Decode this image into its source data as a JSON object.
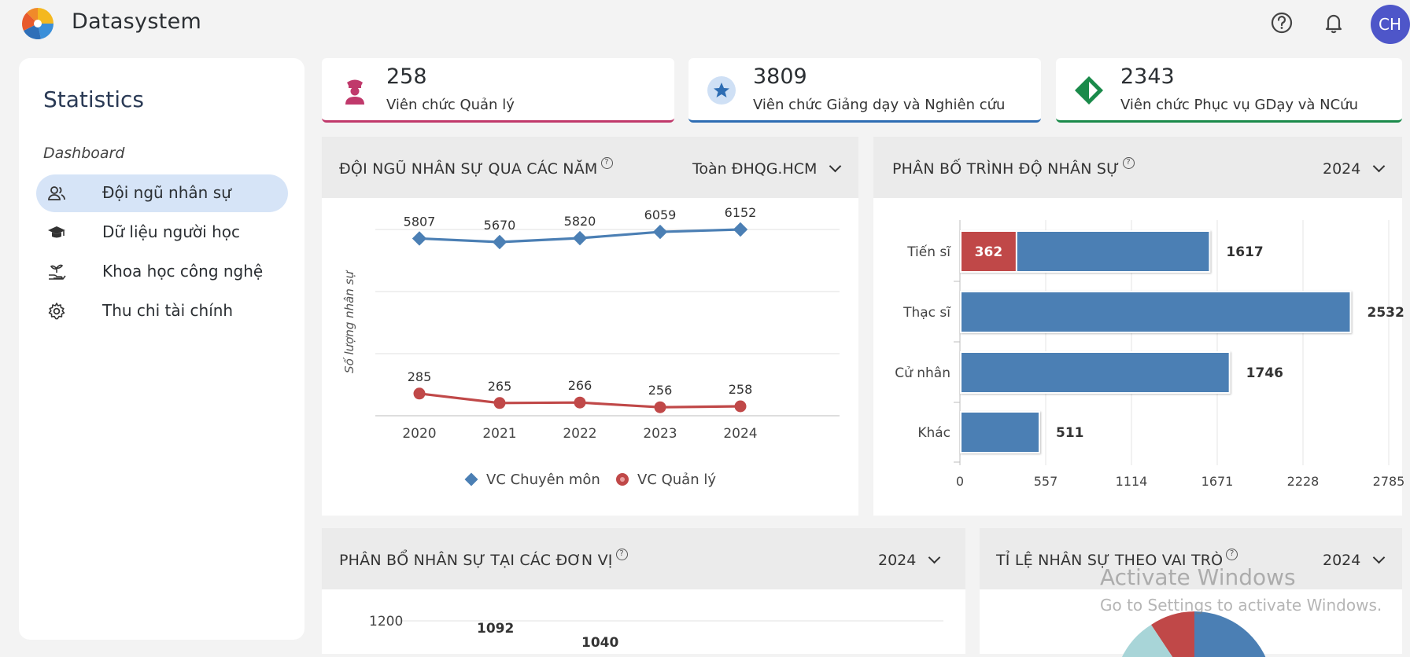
{
  "app": {
    "title": "Datasystem",
    "avatar_initials": "CH"
  },
  "header": {
    "help_icon": "help-circle-icon",
    "bell_icon": "bell-icon"
  },
  "sidebar": {
    "title": "Statistics",
    "section": "Dashboard",
    "items": [
      {
        "label": "Đội ngũ nhân sự",
        "icon": "users-icon",
        "active": true
      },
      {
        "label": "Dữ liệu người học",
        "icon": "graduation-cap-icon",
        "active": false
      },
      {
        "label": "Khoa học công nghệ",
        "icon": "plant-hand-icon",
        "active": false
      },
      {
        "label": "Thu chi tài chính",
        "icon": "gear-icon",
        "active": false
      }
    ]
  },
  "stats": [
    {
      "value": "258",
      "label": "Viên chức Quản lý",
      "color": "#c0396b",
      "icon": "officer-icon"
    },
    {
      "value": "3809",
      "label": "Viên chức Giảng dạy và Nghiên cứu",
      "color": "#2e6db3",
      "icon": "star-badge-icon"
    },
    {
      "value": "2343",
      "label": "Viên chức Phục vụ GDạy và NCứu",
      "color": "#1a8a4a",
      "icon": "diamond-icon"
    }
  ],
  "panels": {
    "staff_years": {
      "title": "ĐỘI NGŨ NHÂN SỰ QUA CÁC NĂM",
      "filter": "Toàn ĐHQG.HCM"
    },
    "degree_dist": {
      "title": "PHÂN BỐ TRÌNH ĐỘ NHÂN SỰ",
      "filter": "2024"
    },
    "unit_dist": {
      "title": "PHÂN BỔ NHÂN SỰ TẠI CÁC ĐƠN VỊ",
      "filter": "2024"
    },
    "role_ratio": {
      "title": "TỈ LỆ NHÂN SỰ THEO VAI TRÒ",
      "filter": "2024"
    }
  },
  "watermark": {
    "line1": "Activate Windows",
    "line2": "Go to Settings to activate Windows."
  },
  "chart_data": [
    {
      "type": "line",
      "ylabel": "Số lượng nhân sự",
      "x": [
        "2020",
        "2021",
        "2022",
        "2023",
        "2024"
      ],
      "series": [
        {
          "name": "VC Chuyên môn",
          "values": [
            5807,
            5670,
            5820,
            6059,
            6152
          ],
          "color": "#4b7fb4",
          "marker": "diamond"
        },
        {
          "name": "VC Quản lý",
          "values": [
            285,
            265,
            266,
            256,
            258
          ],
          "color": "#c04848",
          "marker": "circle"
        }
      ],
      "legend": "bottom",
      "grid": true
    },
    {
      "type": "bar",
      "orientation": "horizontal",
      "categories": [
        "Tiến sĩ",
        "Thạc sĩ",
        "Cử nhân",
        "Khác"
      ],
      "series": [
        {
          "values": [
            362,
            null,
            null,
            null
          ],
          "color": "#c04848"
        },
        {
          "values": [
            1617,
            2532,
            1746,
            511
          ],
          "color": "#4b7fb4"
        }
      ],
      "xticks": [
        "0",
        "557",
        "1114",
        "1671",
        "2228",
        "2785"
      ],
      "xlim": [
        0,
        2785
      ],
      "grid": true
    },
    {
      "type": "bar",
      "yticks": [
        "1200"
      ],
      "values": [
        1092,
        1040
      ]
    }
  ]
}
